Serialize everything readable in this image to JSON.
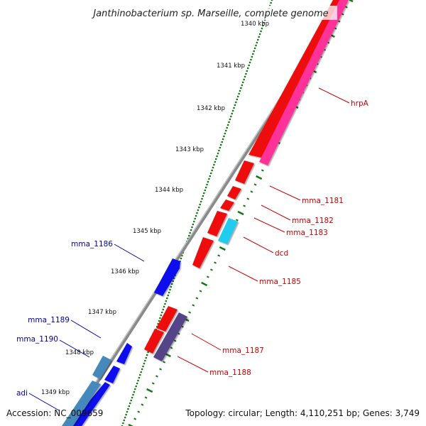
{
  "title": "Janthinobacterium sp. Marseille, complete genome",
  "accession": "Accession: NC_009659",
  "summary": "Topology: circular; Length: 4,110,251 bp; Genes: 3,749",
  "ticks": [
    "1340 kbp",
    "1341 kbp",
    "1342 kbp",
    "1343 kbp",
    "1344 kbp",
    "1345 kbp",
    "1346 kbp",
    "1347 kbp",
    "1348 kbp",
    "1349 kbp"
  ],
  "colors": {
    "forward_cds": "#ee1111",
    "reverse_cds": "#1111ee",
    "hrpA": "#ff3399",
    "dcd": "#22ccee",
    "mma_1188": "#554488",
    "steelblue": "#4488bb",
    "backbone": "#777777",
    "ticks": "#117711",
    "label_forward": "#cc0000",
    "label_reverse": "#0000aa"
  },
  "genes": [
    {
      "label": "hrpA",
      "strand": "forward"
    },
    {
      "label": "mma_1181",
      "strand": "forward"
    },
    {
      "label": "mma_1182",
      "strand": "forward"
    },
    {
      "label": "mma_1183",
      "strand": "forward"
    },
    {
      "label": "dcd",
      "strand": "forward"
    },
    {
      "label": "mma_1185",
      "strand": "forward"
    },
    {
      "label": "mma_1186",
      "strand": "reverse"
    },
    {
      "label": "mma_1187",
      "strand": "forward"
    },
    {
      "label": "mma_1188",
      "strand": "forward"
    },
    {
      "label": "mma_1189",
      "strand": "reverse"
    },
    {
      "label": "mma_1190",
      "strand": "reverse"
    },
    {
      "label": "adi",
      "strand": "reverse"
    }
  ]
}
